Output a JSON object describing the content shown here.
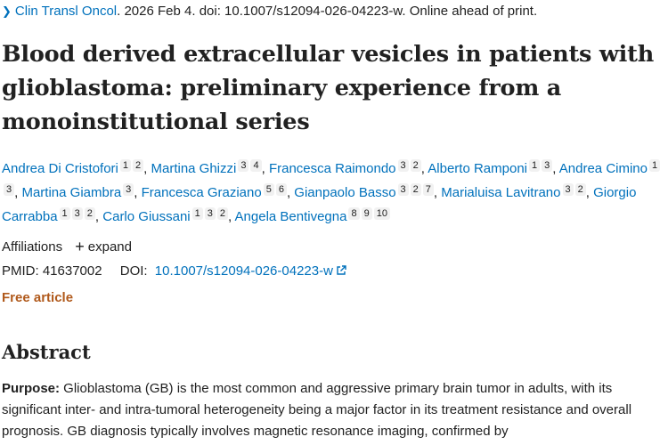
{
  "citation": {
    "journal": "Clin Transl Oncol",
    "details": ". 2026 Feb 4. doi: 10.1007/s12094-026-04223-w. Online ahead of print."
  },
  "title": "Blood derived extracellular vesicles in patients with glioblastoma: preliminary experience from a monoinstitutional series",
  "authors": [
    {
      "name": "Andrea Di Cristofori",
      "refs": [
        "1",
        "2"
      ]
    },
    {
      "name": "Martina Ghizzi",
      "refs": [
        "3",
        "4"
      ]
    },
    {
      "name": "Francesca Raimondo",
      "refs": [
        "3",
        "2"
      ]
    },
    {
      "name": "Alberto Ramponi",
      "refs": [
        "1",
        "3"
      ]
    },
    {
      "name": "Andrea Cimino",
      "refs": [
        "1",
        "3"
      ]
    },
    {
      "name": "Martina Giambra",
      "refs": [
        "3"
      ]
    },
    {
      "name": "Francesca Graziano",
      "refs": [
        "5",
        "6"
      ]
    },
    {
      "name": "Gianpaolo Basso",
      "refs": [
        "3",
        "2",
        "7"
      ]
    },
    {
      "name": "Marialuisa Lavitrano",
      "refs": [
        "3",
        "2"
      ]
    },
    {
      "name": "Giorgio Carrabba",
      "refs": [
        "1",
        "3",
        "2"
      ]
    },
    {
      "name": "Carlo Giussani",
      "refs": [
        "1",
        "3",
        "2"
      ]
    },
    {
      "name": "Angela Bentivegna",
      "refs": [
        "8",
        "9",
        "10"
      ]
    }
  ],
  "affiliations": {
    "label": "Affiliations",
    "expand_label": "expand"
  },
  "ids": {
    "pmid_label": "PMID:",
    "pmid": "41637002",
    "doi_label": "DOI:",
    "doi": "10.1007/s12094-026-04223-w"
  },
  "free_article": "Free article",
  "abstract": {
    "heading": "Abstract",
    "purpose_label": "Purpose:",
    "purpose_text": " Glioblastoma (GB) is the most common and aggressive primary brain tumor in adults, with its significant inter- and intra-tumoral heterogeneity being a major factor in its treatment resistance and overall prognosis. GB diagnosis typically involves magnetic resonance imaging, confirmed by"
  },
  "colors": {
    "link": "#0071bc",
    "free_article": "#b0591b",
    "text": "#212121"
  }
}
